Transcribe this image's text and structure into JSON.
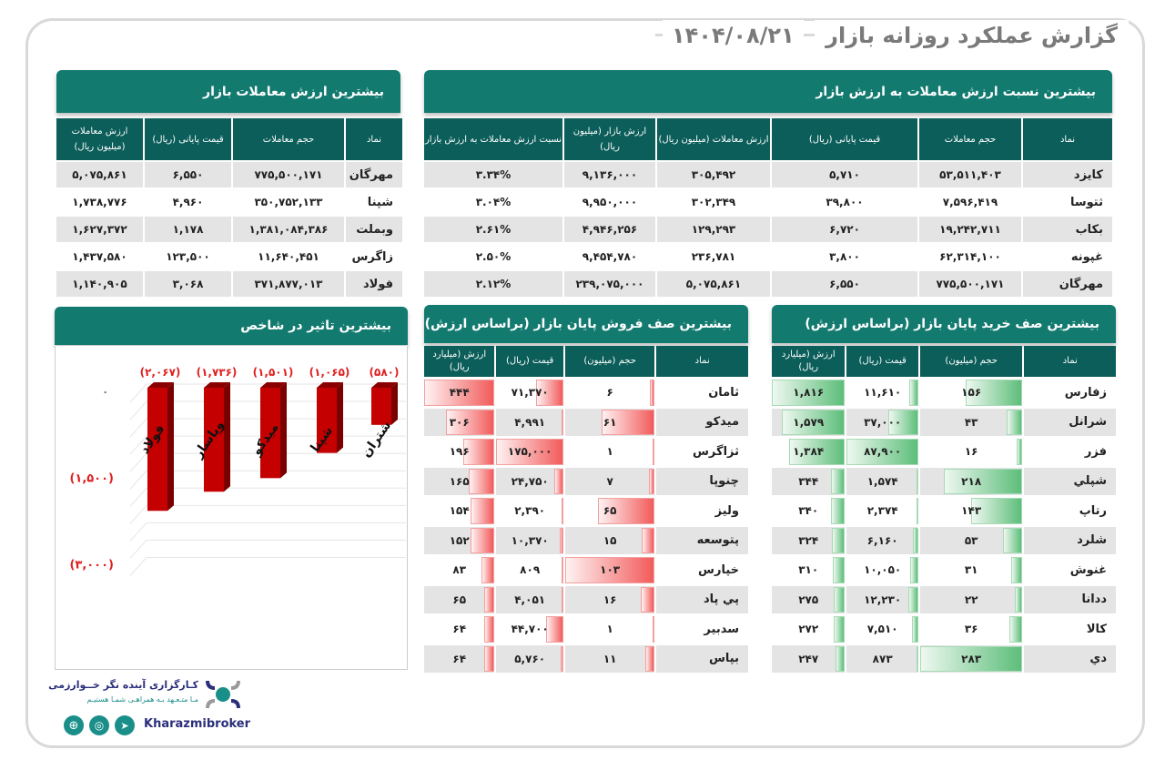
{
  "header": {
    "title": "گزارش عملکرد روزانه بازار",
    "date": "۱۴۰۴/۰۸/۲۱"
  },
  "top_value": {
    "title": "بیشترین ارزش معاملات بازار",
    "columns": [
      "نماد",
      "حجم معاملات",
      "قیمت پایانی (ریال)",
      "ارزش معاملات (میلیون ریال)"
    ],
    "rows": [
      [
        "مهرگان",
        "۷۷۵,۵۰۰,۱۷۱",
        "۶,۵۵۰",
        "۵,۰۷۵,۸۶۱"
      ],
      [
        "شپنا",
        "۳۵۰,۷۵۲,۱۳۳",
        "۴,۹۶۰",
        "۱,۷۳۸,۷۷۶"
      ],
      [
        "وبملت",
        "۱,۳۸۱,۰۸۴,۳۸۶",
        "۱,۱۷۸",
        "۱,۶۲۷,۳۷۲"
      ],
      [
        "زاگرس",
        "۱۱,۶۴۰,۴۵۱",
        "۱۲۳,۵۰۰",
        "۱,۴۳۷,۵۸۰"
      ],
      [
        "فولاد",
        "۳۷۱,۸۷۷,۰۱۳",
        "۳,۰۶۸",
        "۱,۱۴۰,۹۰۵"
      ]
    ]
  },
  "top_ratio": {
    "title": "بیشترین نسبت ارزش معاملات به ارزش بازار",
    "columns": [
      "نماد",
      "حجم معاملات",
      "قیمت پایانی (ریال)",
      "ارزش معاملات (میلیون ریال)",
      "ارزش بازار (میلیون ریال)",
      "نسبت ارزش معاملات به ارزش بازار"
    ],
    "rows": [
      [
        "کایزد",
        "۵۳,۵۱۱,۴۰۳",
        "۵,۷۱۰",
        "۳۰۵,۴۹۲",
        "۹,۱۳۶,۰۰۰",
        "۳.۳۴%"
      ],
      [
        "ثتوسا",
        "۷,۵۹۶,۴۱۹",
        "۳۹,۸۰۰",
        "۳۰۲,۳۴۹",
        "۹,۹۵۰,۰۰۰",
        "۳.۰۴%"
      ],
      [
        "بکاب",
        "۱۹,۲۴۲,۷۱۱",
        "۶,۷۲۰",
        "۱۲۹,۲۹۳",
        "۴,۹۴۶,۲۵۶",
        "۲.۶۱%"
      ],
      [
        "غپونه",
        "۶۲,۳۱۴,۱۰۰",
        "۳,۸۰۰",
        "۲۳۶,۷۸۱",
        "۹,۴۵۴,۷۸۰",
        "۲.۵۰%"
      ],
      [
        "مهرگان",
        "۷۷۵,۵۰۰,۱۷۱",
        "۶,۵۵۰",
        "۵,۰۷۵,۸۶۱",
        "۲۳۹,۰۷۵,۰۰۰",
        "۲.۱۲%"
      ]
    ]
  },
  "sell_queue": {
    "title": "بیشترین صف فروش پایان بازار (براساس ارزش)",
    "columns": [
      "نماد",
      "حجم (میلیون)",
      "قیمت (ریال)",
      "ارزش (میلیارد ریال)"
    ],
    "rows": [
      [
        "ثامان",
        "۶",
        "۷۱,۳۷۰",
        "۴۴۴"
      ],
      [
        "میدکو",
        "۶۱",
        "۴,۹۹۱",
        "۳۰۶"
      ],
      [
        "ثزاگرس",
        "۱",
        "۱۷۵,۰۰۰",
        "۱۹۶"
      ],
      [
        "چنوپا",
        "۷",
        "۲۴,۷۵۰",
        "۱۶۵"
      ],
      [
        "ولیز",
        "۶۵",
        "۲,۳۹۰",
        "۱۵۴"
      ],
      [
        "پتوسعه",
        "۱۵",
        "۱۰,۳۷۰",
        "۱۵۲"
      ],
      [
        "خپارس",
        "۱۰۳",
        "۸۰۹",
        "۸۳"
      ],
      [
        "پي پاد",
        "۱۶",
        "۴,۰۵۱",
        "۶۵"
      ],
      [
        "سدبیر",
        "۱",
        "۴۴,۷۰۰",
        "۶۴"
      ],
      [
        "بپاس",
        "۱۱",
        "۵,۷۶۰",
        "۶۴"
      ]
    ],
    "color": "#f25b5b"
  },
  "buy_queue": {
    "title": "بیشترین صف خرید پایان بازار (براساس ارزش)",
    "columns": [
      "نماد",
      "حجم (میلیون)",
      "قیمت (ریال)",
      "ارزش (میلیارد ریال)"
    ],
    "rows": [
      [
        "زفارس",
        "۱۵۶",
        "۱۱,۶۱۰",
        "۱,۸۱۶"
      ],
      [
        "شرانل",
        "۴۳",
        "۳۷,۰۰۰",
        "۱,۵۷۹"
      ],
      [
        "فزر",
        "۱۶",
        "۸۷,۹۰۰",
        "۱,۳۸۴"
      ],
      [
        "شپلي",
        "۲۱۸",
        "۱,۵۷۴",
        "۳۴۴"
      ],
      [
        "رتاپ",
        "۱۴۳",
        "۲,۳۷۴",
        "۳۴۰"
      ],
      [
        "شلرد",
        "۵۳",
        "۶,۱۶۰",
        "۳۲۴"
      ],
      [
        "غنوش",
        "۳۱",
        "۱۰,۰۵۰",
        "۳۱۰"
      ],
      [
        "ددانا",
        "۲۲",
        "۱۲,۲۳۰",
        "۲۷۵"
      ],
      [
        "کالا",
        "۳۶",
        "۷,۵۱۰",
        "۲۷۲"
      ],
      [
        "دي",
        "۲۸۳",
        "۸۷۳",
        "۲۴۷"
      ]
    ],
    "color": "#5dbe7a"
  },
  "chart_data": {
    "type": "bar",
    "title": "بیشترین تاثیر در شاخص",
    "categories": [
      "فولاد",
      "وپاسار",
      "میدکو",
      "شپنا",
      "شتران"
    ],
    "values": [
      -2067,
      -1736,
      -1501,
      -1065,
      -580
    ],
    "value_labels": [
      "(۲,۰۶۷)",
      "(۱,۷۳۶)",
      "(۱,۵۰۱)",
      "(۱,۰۶۵)",
      "(۵۸۰)"
    ],
    "yticks": [
      0,
      -1500,
      -3000
    ],
    "ytick_labels": [
      "۰",
      "(۱,۵۰۰)",
      "(۳,۰۰۰)"
    ],
    "ylim": [
      -3000,
      0
    ],
    "bar_color": "#c40000"
  },
  "footer": {
    "company": "کـارگزاری آینده نگر خــوارزمی",
    "slogan": "مـا متـعـهد بـه همراهـی شمـا هستیـم",
    "handle": "Kharazmibroker"
  }
}
